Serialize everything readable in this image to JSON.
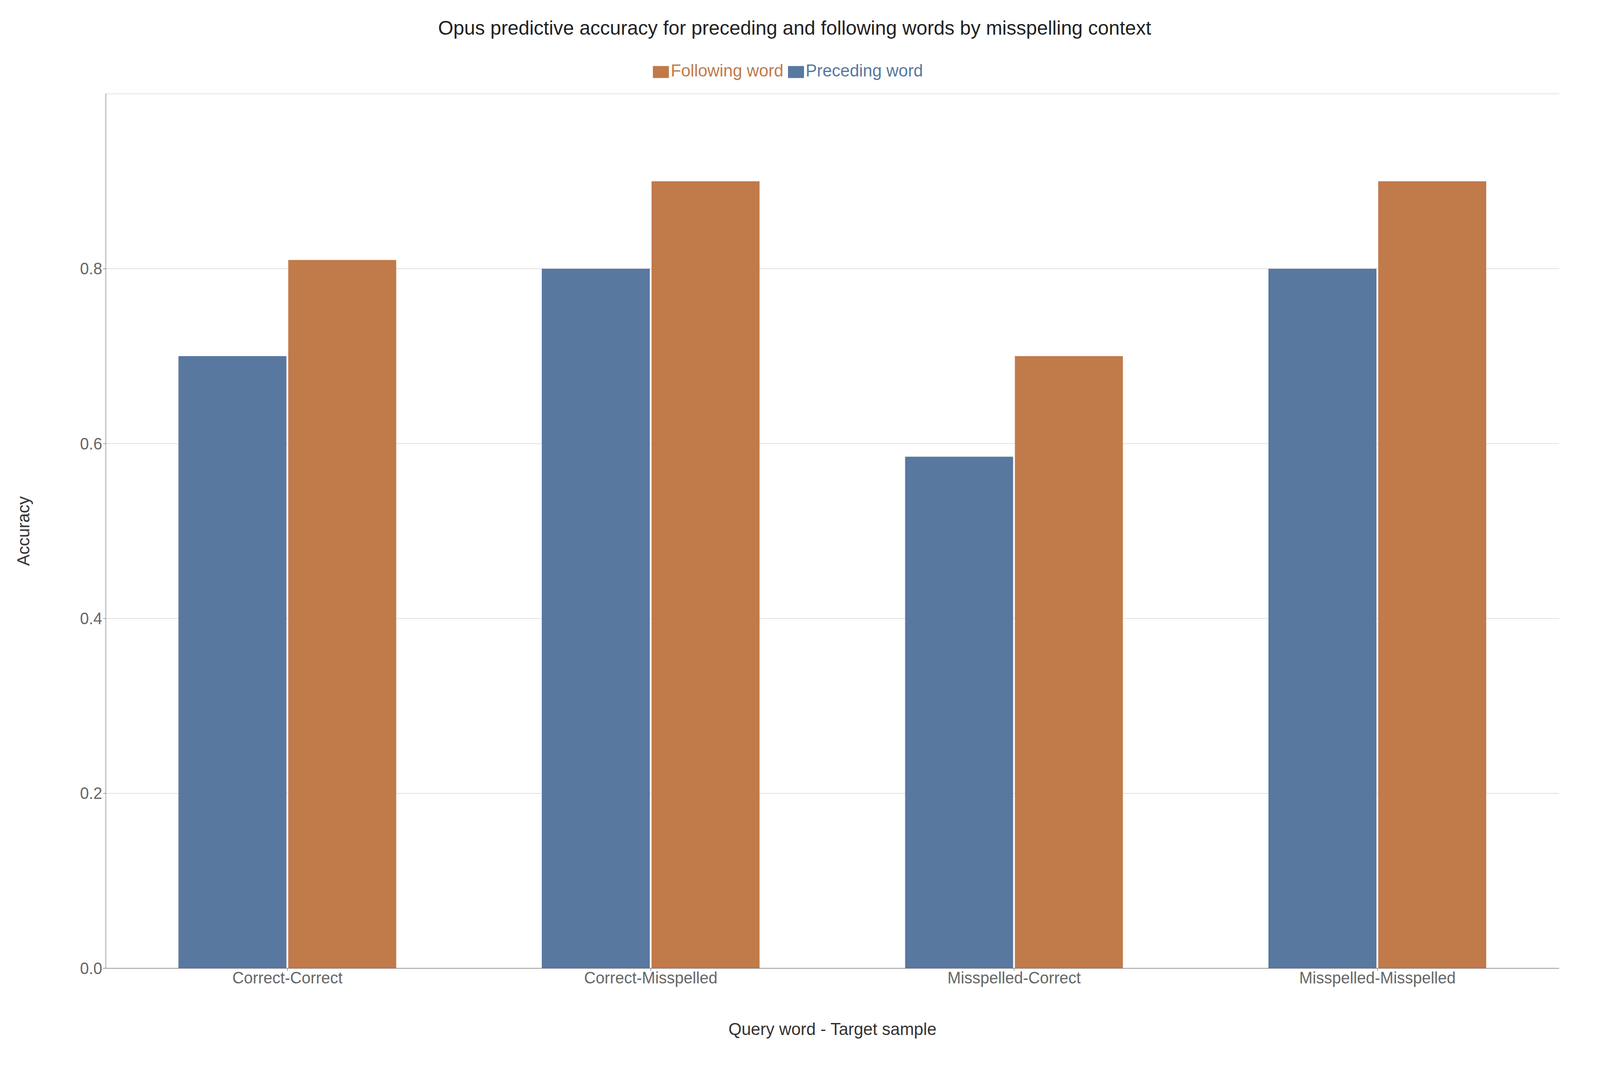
{
  "chart_data": {
    "type": "bar",
    "title": "Opus predictive accuracy for preceding and following words by misspelling context",
    "xlabel": "Query word - Target sample",
    "ylabel": "Accuracy",
    "categories": [
      "Correct-Correct",
      "Correct-Misspelled",
      "Misspelled-Correct",
      "Misspelled-Misspelled"
    ],
    "series": [
      {
        "name": "Preceding word",
        "color": "#5878a0",
        "values": [
          0.7,
          0.8,
          0.585,
          0.8
        ]
      },
      {
        "name": "Following word",
        "color": "#c17a4a",
        "values": [
          0.81,
          0.9,
          0.7,
          0.9
        ]
      }
    ],
    "ylim": [
      0.0,
      1.0
    ],
    "yticks": [
      {
        "value": 0.0,
        "label": "0.0"
      },
      0.2,
      0.4,
      0.6,
      0.8
    ],
    "grid": true,
    "legend": "upper center"
  }
}
